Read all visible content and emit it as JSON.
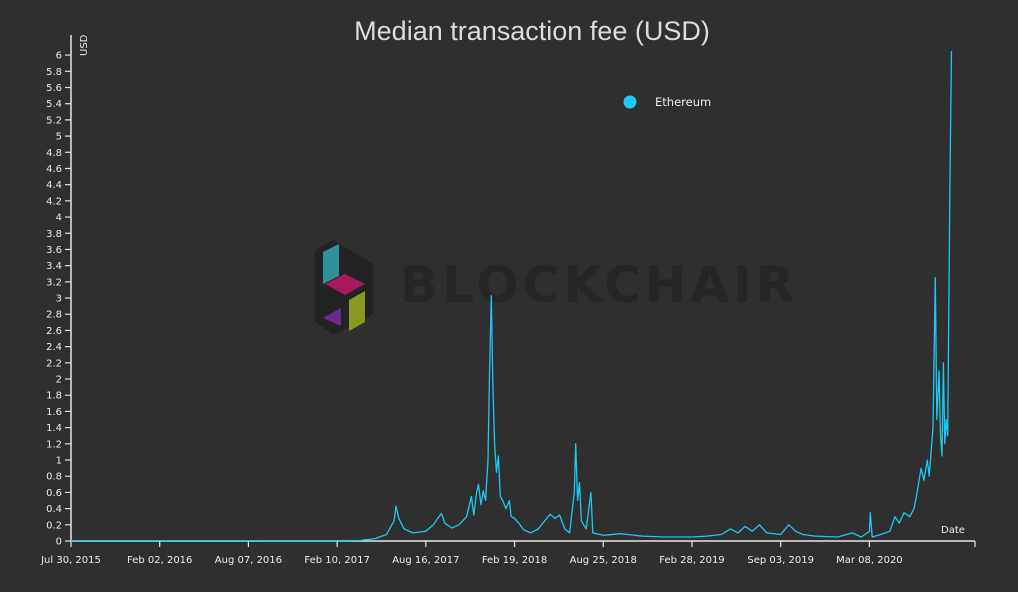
{
  "chart_data": {
    "type": "line",
    "title": "Median transaction fee (USD)",
    "xlabel": "Date",
    "ylabel": "USD",
    "ylim": [
      0,
      6.1
    ],
    "y_ticks": [
      0,
      0.2,
      0.4,
      0.6,
      0.8,
      1,
      1.2,
      1.4,
      1.6,
      1.8,
      2,
      2.2,
      2.4,
      2.6,
      2.8,
      3,
      3.2,
      3.4,
      3.6,
      3.8,
      4,
      4.2,
      4.4,
      4.6,
      4.8,
      5,
      5.2,
      5.4,
      5.6,
      5.8,
      6
    ],
    "x_range": [
      "2015-07-30",
      "2020-06-30"
    ],
    "x_ticks": [
      {
        "date": "2015-07-30",
        "label": "Jul 30, 2015"
      },
      {
        "date": "2016-02-02",
        "label": "Feb 02, 2016"
      },
      {
        "date": "2016-08-07",
        "label": "Aug 07, 2016"
      },
      {
        "date": "2017-02-10",
        "label": "Feb 10, 2017"
      },
      {
        "date": "2017-08-16",
        "label": "Aug 16, 2017"
      },
      {
        "date": "2018-02-19",
        "label": "Feb 19, 2018"
      },
      {
        "date": "2018-08-25",
        "label": "Aug 25, 2018"
      },
      {
        "date": "2019-02-28",
        "label": "Feb 28, 2019"
      },
      {
        "date": "2019-09-03",
        "label": "Sep 03, 2019"
      },
      {
        "date": "2020-03-08",
        "label": "Mar 08, 2020"
      }
    ],
    "legend_position": "top-right",
    "grid": false,
    "series": [
      {
        "name": "Ethereum",
        "color": "#1ec8f5",
        "points": [
          [
            "2015-07-30",
            0.005
          ],
          [
            "2016-02-02",
            0.005
          ],
          [
            "2016-08-07",
            0.005
          ],
          [
            "2016-12-01",
            0.004
          ],
          [
            "2017-02-10",
            0.004
          ],
          [
            "2017-04-01",
            0.008
          ],
          [
            "2017-05-01",
            0.03
          ],
          [
            "2017-05-25",
            0.08
          ],
          [
            "2017-06-10",
            0.25
          ],
          [
            "2017-06-14",
            0.43
          ],
          [
            "2017-06-20",
            0.28
          ],
          [
            "2017-07-01",
            0.15
          ],
          [
            "2017-07-20",
            0.1
          ],
          [
            "2017-08-16",
            0.12
          ],
          [
            "2017-09-01",
            0.2
          ],
          [
            "2017-09-10",
            0.28
          ],
          [
            "2017-09-18",
            0.34
          ],
          [
            "2017-09-25",
            0.22
          ],
          [
            "2017-10-10",
            0.16
          ],
          [
            "2017-10-25",
            0.2
          ],
          [
            "2017-11-10",
            0.3
          ],
          [
            "2017-11-20",
            0.55
          ],
          [
            "2017-11-25",
            0.32
          ],
          [
            "2017-12-01",
            0.6
          ],
          [
            "2017-12-05",
            0.7
          ],
          [
            "2017-12-10",
            0.45
          ],
          [
            "2017-12-15",
            0.62
          ],
          [
            "2017-12-20",
            0.5
          ],
          [
            "2017-12-25",
            1.0
          ],
          [
            "2017-12-28",
            2.0
          ],
          [
            "2018-01-01",
            3.03
          ],
          [
            "2018-01-04",
            2.0
          ],
          [
            "2018-01-08",
            1.2
          ],
          [
            "2018-01-12",
            0.85
          ],
          [
            "2018-01-16",
            1.05
          ],
          [
            "2018-01-20",
            0.55
          ],
          [
            "2018-01-25",
            0.5
          ],
          [
            "2018-02-01",
            0.4
          ],
          [
            "2018-02-08",
            0.5
          ],
          [
            "2018-02-12",
            0.3
          ],
          [
            "2018-02-19",
            0.28
          ],
          [
            "2018-02-28",
            0.22
          ],
          [
            "2018-03-10",
            0.14
          ],
          [
            "2018-03-25",
            0.1
          ],
          [
            "2018-04-10",
            0.15
          ],
          [
            "2018-04-25",
            0.26
          ],
          [
            "2018-05-05",
            0.33
          ],
          [
            "2018-05-15",
            0.28
          ],
          [
            "2018-05-25",
            0.32
          ],
          [
            "2018-06-05",
            0.15
          ],
          [
            "2018-06-15",
            0.1
          ],
          [
            "2018-06-25",
            0.6
          ],
          [
            "2018-06-28",
            1.2
          ],
          [
            "2018-07-02",
            0.5
          ],
          [
            "2018-07-06",
            0.72
          ],
          [
            "2018-07-10",
            0.25
          ],
          [
            "2018-07-20",
            0.15
          ],
          [
            "2018-07-30",
            0.6
          ],
          [
            "2018-08-03",
            0.1
          ],
          [
            "2018-08-25",
            0.07
          ],
          [
            "2018-10-01",
            0.09
          ],
          [
            "2018-11-15",
            0.06
          ],
          [
            "2019-01-01",
            0.05
          ],
          [
            "2019-02-28",
            0.05
          ],
          [
            "2019-04-01",
            0.06
          ],
          [
            "2019-05-01",
            0.08
          ],
          [
            "2019-05-20",
            0.15
          ],
          [
            "2019-06-05",
            0.1
          ],
          [
            "2019-06-20",
            0.18
          ],
          [
            "2019-07-05",
            0.12
          ],
          [
            "2019-07-20",
            0.2
          ],
          [
            "2019-08-05",
            0.1
          ],
          [
            "2019-09-03",
            0.08
          ],
          [
            "2019-09-20",
            0.2
          ],
          [
            "2019-10-05",
            0.12
          ],
          [
            "2019-10-20",
            0.08
          ],
          [
            "2019-11-15",
            0.06
          ],
          [
            "2020-01-01",
            0.05
          ],
          [
            "2020-02-01",
            0.1
          ],
          [
            "2020-02-20",
            0.05
          ],
          [
            "2020-03-08",
            0.12
          ],
          [
            "2020-03-10",
            0.35
          ],
          [
            "2020-03-14",
            0.05
          ],
          [
            "2020-04-01",
            0.08
          ],
          [
            "2020-04-20",
            0.12
          ],
          [
            "2020-05-01",
            0.3
          ],
          [
            "2020-05-10",
            0.22
          ],
          [
            "2020-05-20",
            0.35
          ],
          [
            "2020-06-01",
            0.3
          ],
          [
            "2020-06-10",
            0.4
          ],
          [
            "2020-06-15",
            0.55
          ],
          [
            "2020-06-25",
            0.9
          ],
          [
            "2020-07-01",
            0.75
          ],
          [
            "2020-07-08",
            1.0
          ],
          [
            "2020-07-12",
            0.8
          ],
          [
            "2020-07-20",
            1.4
          ],
          [
            "2020-07-25",
            3.25
          ],
          [
            "2020-07-28",
            1.5
          ],
          [
            "2020-08-02",
            2.1
          ],
          [
            "2020-08-05",
            1.3
          ],
          [
            "2020-08-08",
            1.05
          ],
          [
            "2020-08-11",
            2.2
          ],
          [
            "2020-08-14",
            1.2
          ],
          [
            "2020-08-17",
            1.5
          ],
          [
            "2020-08-20",
            1.3
          ],
          [
            "2020-08-25",
            4.5
          ],
          [
            "2020-08-28",
            6.05
          ]
        ]
      }
    ]
  },
  "watermark": {
    "text": "BLOCKCHAIR",
    "colors": [
      "#2f8f9a",
      "#a8185f",
      "#8a9a1e",
      "#6a2a90"
    ]
  }
}
